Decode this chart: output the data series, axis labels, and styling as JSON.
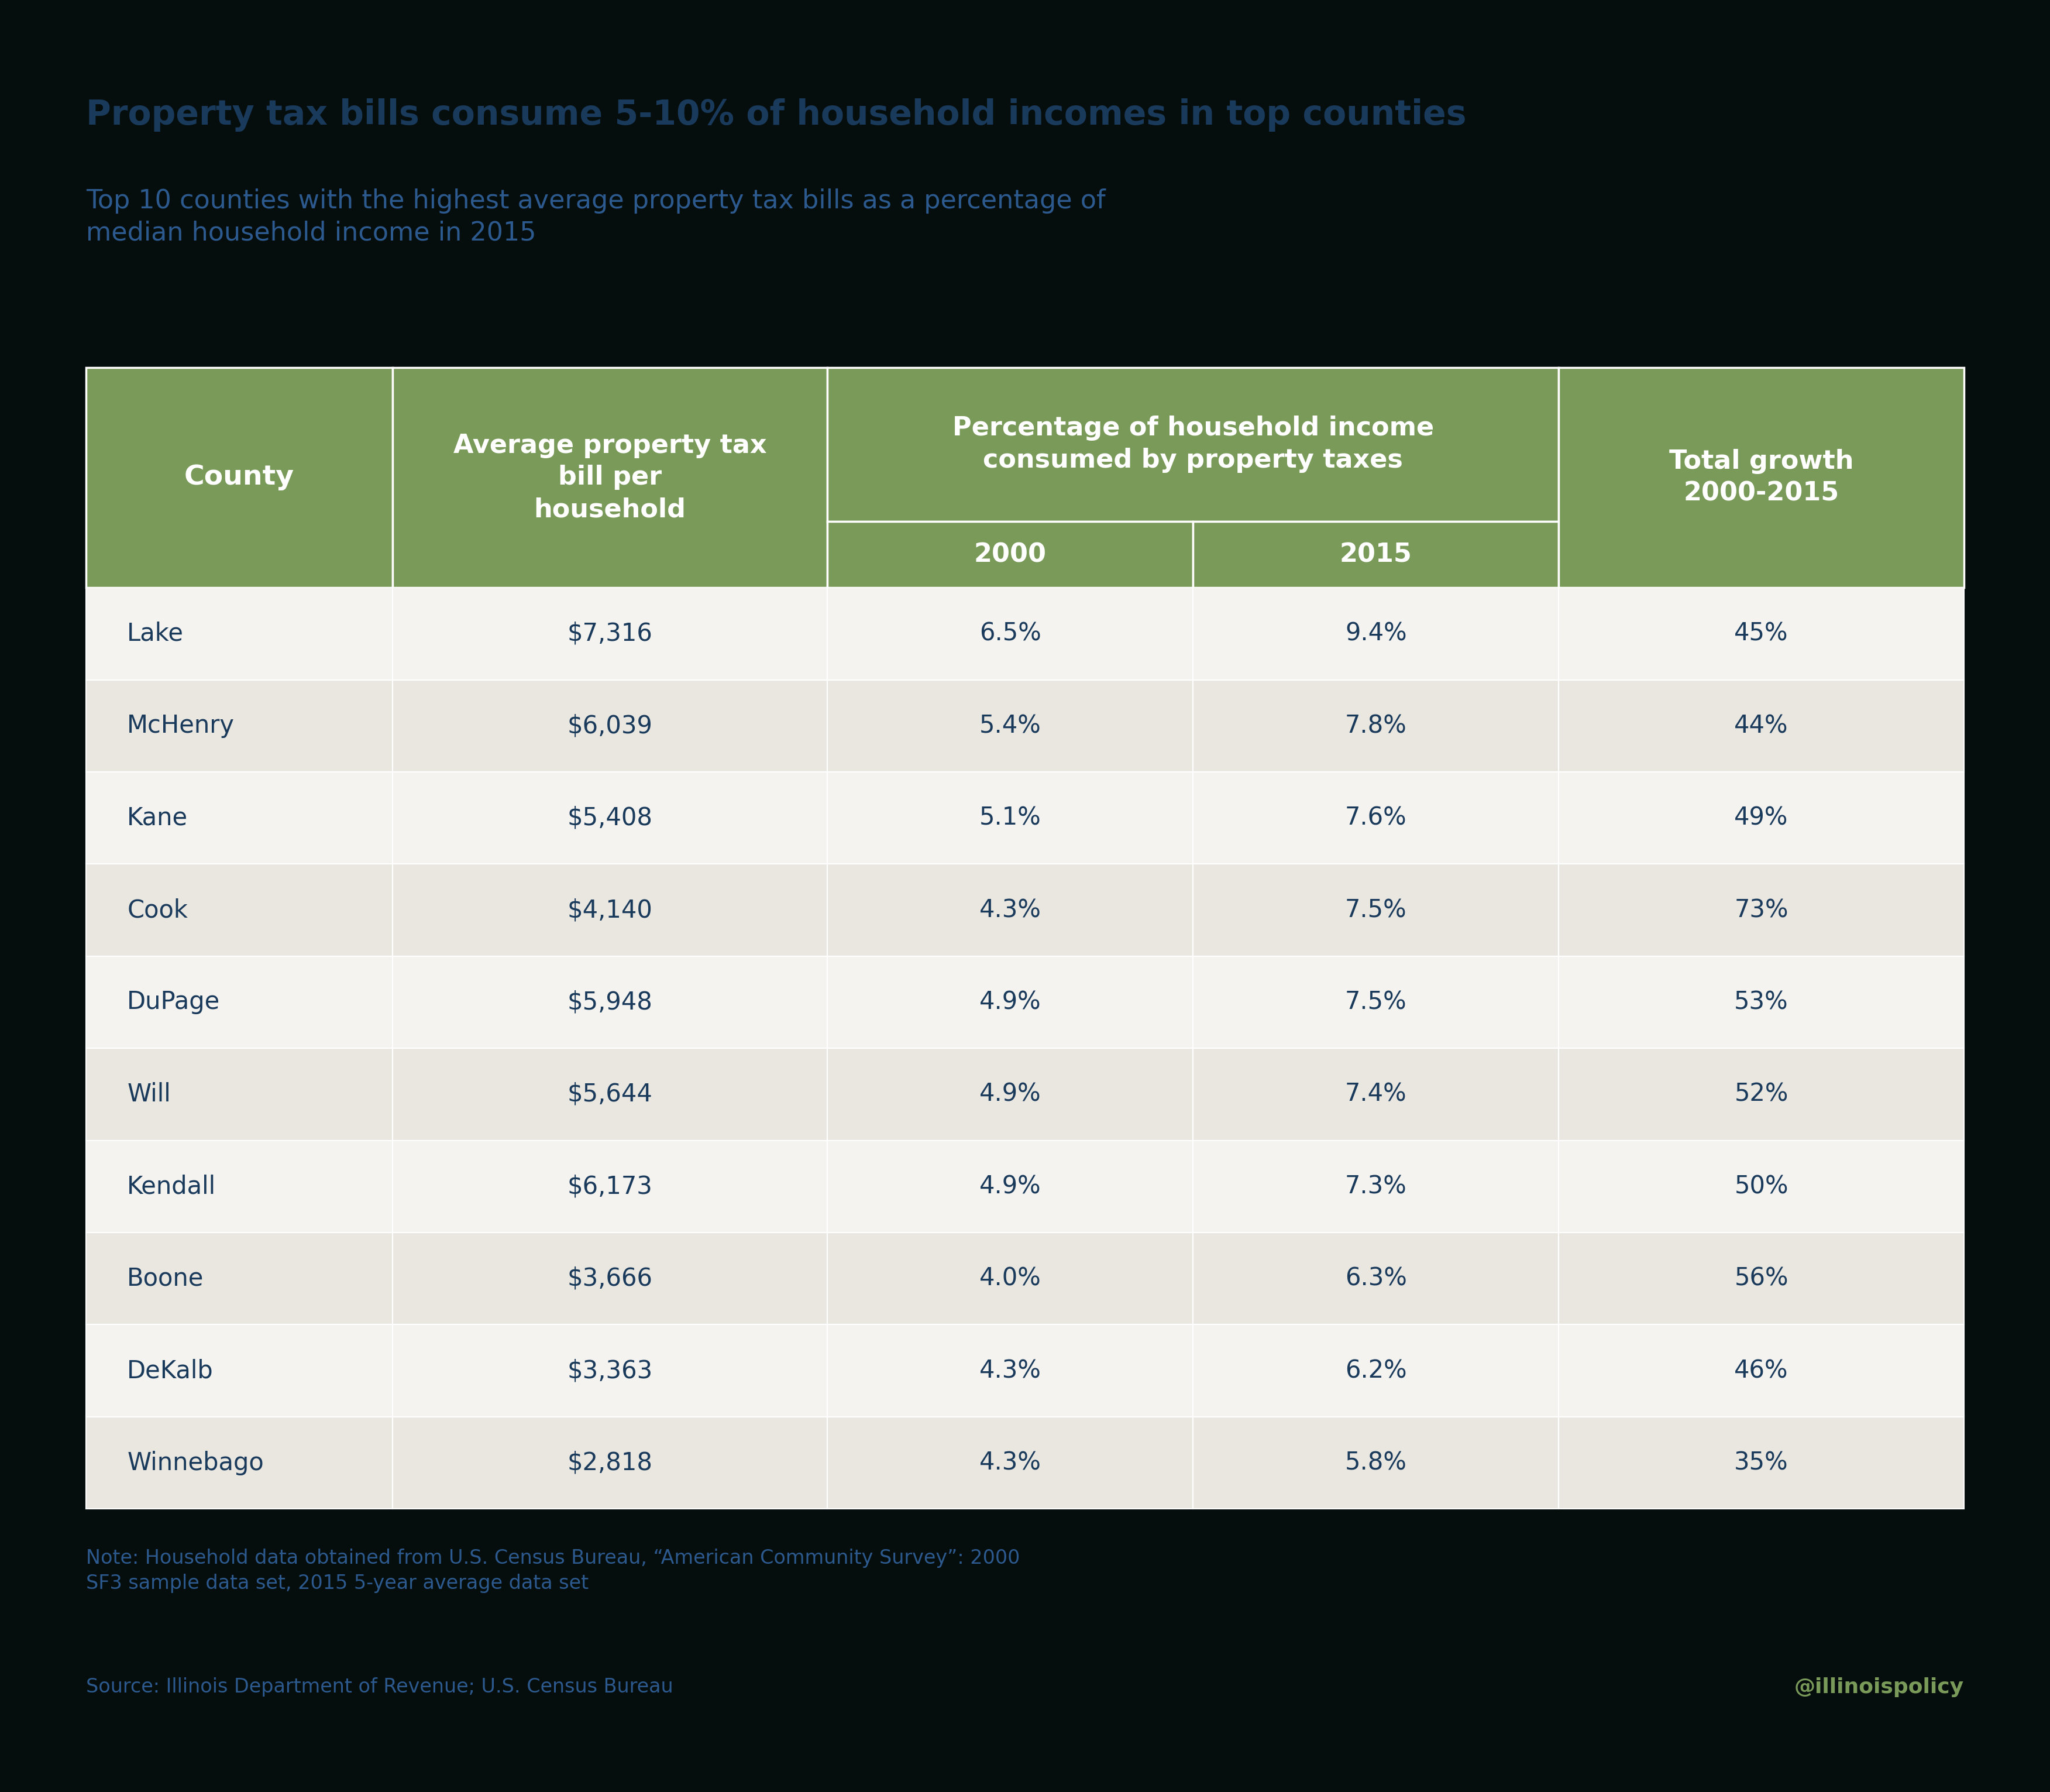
{
  "title_bold": "Property tax bills consume 5-10% of household incomes in top counties",
  "title_sub": "Top 10 counties with the highest average property tax bills as a percentage of\nmedian household income in 2015",
  "title_color": "#1a3a5c",
  "subtitle_color": "#2d5a8e",
  "background_color": "#050d0d",
  "header_bg": "#7a9a5a",
  "row_colors": [
    "#f5f3ef",
    "#eae7e1"
  ],
  "data": [
    [
      "Lake",
      "$7,316",
      "6.5%",
      "9.4%",
      "45%"
    ],
    [
      "McHenry",
      "$6,039",
      "5.4%",
      "7.8%",
      "44%"
    ],
    [
      "Kane",
      "$5,408",
      "5.1%",
      "7.6%",
      "49%"
    ],
    [
      "Cook",
      "$4,140",
      "4.3%",
      "7.5%",
      "73%"
    ],
    [
      "DuPage",
      "$5,948",
      "4.9%",
      "7.5%",
      "53%"
    ],
    [
      "Will",
      "$5,644",
      "4.9%",
      "7.4%",
      "52%"
    ],
    [
      "Kendall",
      "$6,173",
      "4.9%",
      "7.3%",
      "50%"
    ],
    [
      "Boone",
      "$3,666",
      "4.0%",
      "6.3%",
      "56%"
    ],
    [
      "DeKalb",
      "$3,363",
      "4.3%",
      "6.2%",
      "46%"
    ],
    [
      "Winnebago",
      "$2,818",
      "4.3%",
      "5.8%",
      "35%"
    ]
  ],
  "note_text": "Note: Household data obtained from U.S. Census Bureau, “American Community Survey”: 2000\nSF3 sample data set, 2015 5-year average data set",
  "source_text": "Source: Illinois Department of Revenue; U.S. Census Bureau",
  "watermark_text": "@illinoispolicy",
  "note_color": "#2d5a8e",
  "source_color": "#2d5a8e",
  "watermark_color": "#7a9a5a",
  "data_text_color": "#1a3a5c"
}
